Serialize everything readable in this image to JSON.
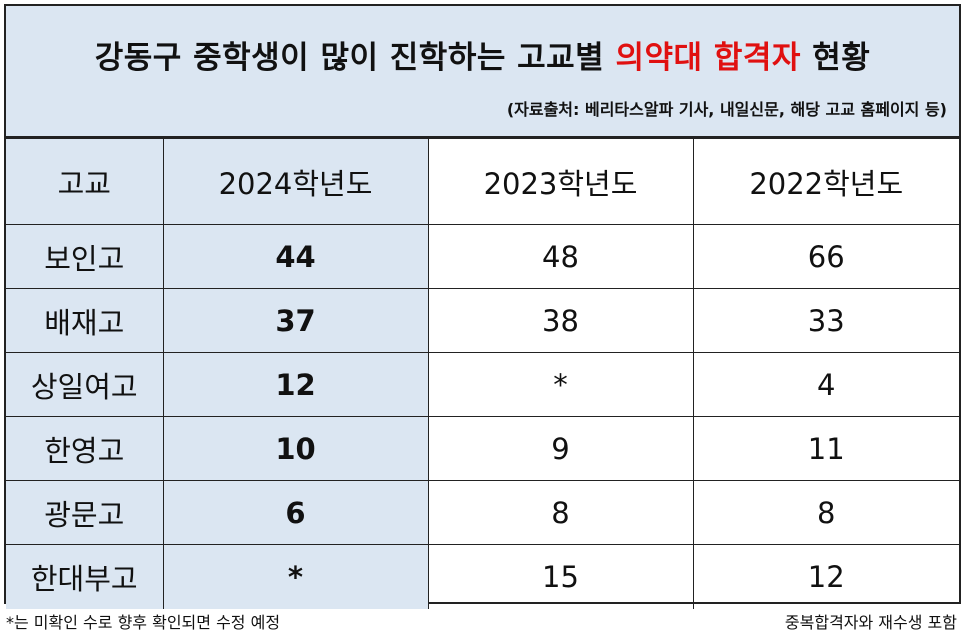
{
  "header": {
    "title_prefix": "강동구 중학생이 많이 진학하는 고교별 ",
    "title_highlight_1": "의약대",
    "title_space": " ",
    "title_highlight_2": "합격자",
    "title_suffix": " 현황",
    "highlight_color": "#e01010",
    "source": "(자료출처: 베리타스알파 기사, 내일신문, 해당 고교 홈페이지 등)"
  },
  "table": {
    "columns": [
      "고교",
      "2024학년도",
      "2023학년도",
      "2022학년도"
    ],
    "rows": [
      [
        "보인고",
        "44",
        "48",
        "66"
      ],
      [
        "배재고",
        "37",
        "38",
        "33"
      ],
      [
        "상일여고",
        "12",
        "*",
        "4"
      ],
      [
        "한영고",
        "10",
        "9",
        "11"
      ],
      [
        "광문고",
        "6",
        "8",
        "8"
      ],
      [
        "한대부고",
        "*",
        "15",
        "12"
      ]
    ]
  },
  "footer": {
    "left_note": "*는 미확인 수로 향후 확인되면 수정 예정",
    "right_note": "중복합격자와 재수생 포함"
  },
  "colors": {
    "shade": "#dbe6f2",
    "border": "#222222"
  }
}
